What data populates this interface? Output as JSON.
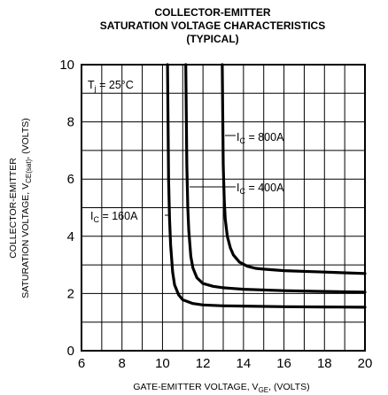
{
  "chart_data": {
    "type": "line",
    "title_lines": [
      "COLLECTOR-EMITTER",
      "SATURATION VOLTAGE CHARACTERISTICS",
      "(TYPICAL)"
    ],
    "xlabel": {
      "prefix": "GATE-EMITTER VOLTAGE, V",
      "sub": "GE",
      "suffix": ", (VOLTS)"
    },
    "ylabel": {
      "line1": "COLLECTOR-EMITTER",
      "line2_prefix": "SATURATION VOLTAGE, V",
      "line2_sub": "CE(sat)",
      "line2_suffix": ", (VOLTS)"
    },
    "xlim": [
      6,
      20
    ],
    "ylim": [
      0,
      10
    ],
    "xticks": [
      6,
      8,
      10,
      12,
      14,
      16,
      18,
      20
    ],
    "yticks": [
      0,
      2,
      4,
      6,
      8,
      10
    ],
    "grid": true,
    "condition": {
      "prefix": "T",
      "sub": "j",
      "suffix": " = 25°C"
    },
    "series": [
      {
        "name": "160A",
        "label": {
          "prefix": "I",
          "sub": "C",
          "suffix": " = 160A"
        },
        "x": [
          10.25,
          10.3,
          10.35,
          10.4,
          10.5,
          10.6,
          10.8,
          11.0,
          11.5,
          12.0,
          13.0,
          14.0,
          16.0,
          18.0,
          20.0
        ],
        "y": [
          10.0,
          6.0,
          4.6,
          3.7,
          2.75,
          2.3,
          1.95,
          1.78,
          1.65,
          1.6,
          1.57,
          1.56,
          1.54,
          1.53,
          1.52
        ]
      },
      {
        "name": "400A",
        "label": {
          "prefix": "I",
          "sub": "C",
          "suffix": " = 400A"
        },
        "x": [
          11.15,
          11.2,
          11.25,
          11.3,
          11.4,
          11.5,
          11.7,
          12.0,
          12.5,
          13.0,
          14.0,
          16.0,
          18.0,
          20.0
        ],
        "y": [
          10.0,
          6.5,
          5.0,
          4.2,
          3.3,
          2.9,
          2.55,
          2.35,
          2.25,
          2.2,
          2.15,
          2.1,
          2.07,
          2.05
        ]
      },
      {
        "name": "800A",
        "label": {
          "prefix": "I",
          "sub": "C",
          "suffix": " = 800A"
        },
        "x": [
          12.95,
          13.0,
          13.05,
          13.1,
          13.2,
          13.35,
          13.5,
          13.8,
          14.2,
          14.6,
          15.0,
          16.0,
          18.0,
          20.0
        ],
        "y": [
          10.0,
          6.5,
          5.3,
          4.6,
          4.0,
          3.6,
          3.35,
          3.1,
          2.95,
          2.88,
          2.85,
          2.8,
          2.75,
          2.7
        ]
      }
    ]
  }
}
